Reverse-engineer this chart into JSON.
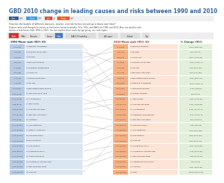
{
  "title": "GBD 2010 change in leading causes and risks between 1990 and 2010",
  "col_header_1990": "1990 Mean rank (95% UI)",
  "col_header_2010": "2010 Mean rank (95% UI)",
  "col_header_change": "% Change (95%",
  "rows_1990": [
    {
      "rank": "1.1 (1-1)",
      "label": "1 Childhood underweight"
    },
    {
      "rank": "1.9 (1-3)",
      "label": "2 Household air pollution"
    },
    {
      "rank": "2.9 (2-4)",
      "label": "3 Smoking"
    },
    {
      "rank": "4.0 (1-7)",
      "label": "4 High blood pressure"
    },
    {
      "rank": "5.4 (3-8)",
      "label": "5 Suboptimal breastfeeding"
    },
    {
      "rank": "5.6 (3-8)",
      "label": "6 Alcohol use"
    },
    {
      "rank": "7.4 (4-9)",
      "label": "7 Ambient PM pollution"
    },
    {
      "rank": "7.4 (4-9)",
      "label": "8 Low fruit"
    },
    {
      "rank": "8.7 (9-12)",
      "label": "9 High fasting plasma glucose"
    },
    {
      "rank": "10.9 (9-14)",
      "label": "10 High body-mass index"
    },
    {
      "rank": "11.4 (9-15)",
      "label": "11 Iron deficiency"
    },
    {
      "rank": "13.8 (9-17)",
      "label": "12 High sodium"
    },
    {
      "rank": "13.9 (11-19)",
      "label": "13 Low nuts and seeds"
    },
    {
      "rank": "14.1 (11-17)",
      "label": "14 High total cholesterol"
    },
    {
      "rank": "16.3 (9-20)",
      "label": "15 Sanitation"
    },
    {
      "rank": "16.7 (13-21)",
      "label": "16 Low vegetables"
    },
    {
      "rank": "17.1 (11-23)",
      "label": "17 Vitamin A deficiency"
    },
    {
      "rank": "17.3 (13-23)",
      "label": "18 Low whole grains"
    },
    {
      "rank": "19.0 (13-26)",
      "label": "19 Zinc deficiency"
    },
    {
      "rank": "20.4 (17-25)",
      "label": "20 Low omega-3"
    },
    {
      "rank": "20.8 (18-24)",
      "label": "21 Occupational injury"
    },
    {
      "rank": "21.7 (14-34)",
      "label": "22 Unimproved water"
    },
    {
      "rank": "23.6 (19-29)",
      "label": "23 Occupational low back pain"
    },
    {
      "rank": "23.3 (19-29)",
      "label": "24 High processed meat"
    },
    {
      "rank": "24.0 (21-29)",
      "label": "25 Drug use"
    }
  ],
  "rows_2010": [
    {
      "rank": "1.1 (1-2)",
      "label": "1 High blood pressure"
    },
    {
      "rank": "1.9 (1-2)",
      "label": "2 Smoking"
    },
    {
      "rank": "3.0 (2-4)",
      "label": "3 Alcohol use"
    },
    {
      "rank": "4.7 (3-7)",
      "label": "4 Household air pollution"
    },
    {
      "rank": "5.0 (4-8)",
      "label": "5 Low fruit"
    },
    {
      "rank": "6.1 (4-9)",
      "label": "6 High body-mass index"
    },
    {
      "rank": "6.6 (5-9)",
      "label": "7 High fasting plasma glucose"
    },
    {
      "rank": "8.5 (4-11)",
      "label": "8 Childhood underweight"
    },
    {
      "rank": "8.7 (7-11)",
      "label": "9 Ambient PM pollution"
    },
    {
      "rank": "9.8 (8-12)",
      "label": "10 Physical inactivity"
    },
    {
      "rank": "11.3 (9-15)",
      "label": "11 High sodium"
    },
    {
      "rank": "11.8 (11-17)",
      "label": "12 Low nuts and seeds"
    },
    {
      "rank": "13.5 (11-17)",
      "label": "13 Iron deficiency"
    },
    {
      "rank": "13.8 (10-18)",
      "label": "14 Suboptimal breastfeeding"
    },
    {
      "rank": "15.3 (12-17)",
      "label": "15 High total cholesterol"
    },
    {
      "rank": "15.5 (13-17)",
      "label": "16 Low whole grains"
    },
    {
      "rank": "17.8 (13-19)",
      "label": "17 Low vegetables"
    },
    {
      "rank": "18.7 (17-23)",
      "label": "18 Low omega-3"
    },
    {
      "rank": "20.3 (18-23)",
      "label": "19 Drug use"
    },
    {
      "rank": "20.4 (18-22)",
      "label": "20 Occupational injury"
    },
    {
      "rank": "21.0 (18-25)",
      "label": "21 Occupational low back pain"
    },
    {
      "rank": "19.7 (17-31)",
      "label": "22 High processed meat"
    },
    {
      "rank": "23.8 (20-28)",
      "label": "23 Intimate partner violence"
    },
    {
      "rank": "24.8 (18-31)",
      "label": "24 Low fiber"
    },
    {
      "rank": "22.5 (19-28)",
      "label": "25 Lead"
    }
  ],
  "changes": [
    "-37% (-19 to 24)",
    "0% (-9 to 11)",
    "-49% (-17 to 90)",
    "-10% (-44 to -2)",
    "19% (15 to 34)",
    "62% (71 to 89)",
    "-66% (45 to 73)",
    "-61% (-94 to -7)",
    "-17% (-13 to 0)",
    "0% (0 to 0)",
    "30% (-17 to 39)",
    "-17% (-13 to 59)",
    "-17% (-0.1 to -4)",
    "-57% (-43 to -3)",
    "9% (-13 to 16)",
    "38% (0 to 40)",
    "10% (16 to 28)",
    "50% (21 to 30)",
    "80% (42 to 73)",
    "14% (-24 to 58)",
    "-37% (11 to 99)",
    "-10% (17 to 44)",
    "0% (1 to 0)",
    "10% (-10 to 30)",
    "100% (143 to 19)"
  ],
  "line_connections": [
    [
      0,
      7
    ],
    [
      1,
      3
    ],
    [
      2,
      1
    ],
    [
      3,
      0
    ],
    [
      4,
      13
    ],
    [
      5,
      2
    ],
    [
      6,
      8
    ],
    [
      7,
      4
    ],
    [
      8,
      6
    ],
    [
      9,
      5
    ],
    [
      10,
      12
    ],
    [
      11,
      10
    ],
    [
      12,
      11
    ],
    [
      13,
      14
    ],
    [
      14,
      2
    ],
    [
      15,
      16
    ],
    [
      16,
      3
    ],
    [
      17,
      15
    ],
    [
      18,
      4
    ],
    [
      19,
      17
    ],
    [
      20,
      20
    ],
    [
      21,
      1
    ],
    [
      22,
      22
    ],
    [
      23,
      21
    ],
    [
      24,
      18
    ]
  ],
  "title_color": "#336699",
  "title_fontsize": 5.5,
  "rank_box_color_1990": "#b8cce4",
  "label_box_color_1990": "#dce6f1",
  "rank_box_color_2010": "#f4b183",
  "label_box_color_2010": "#fce4d6",
  "change_box_color": "#e2efda",
  "header_color_1990": "#17375e",
  "header_color_2010": "#953734",
  "header_color_change": "#375623",
  "line_color": "#888888",
  "bg_color": "#ffffff",
  "toolbar_bg": "#eeeeee",
  "share_bar_bg": "#f0f0f0",
  "desc_text_color": "#444444",
  "row_text_color": "#111111"
}
